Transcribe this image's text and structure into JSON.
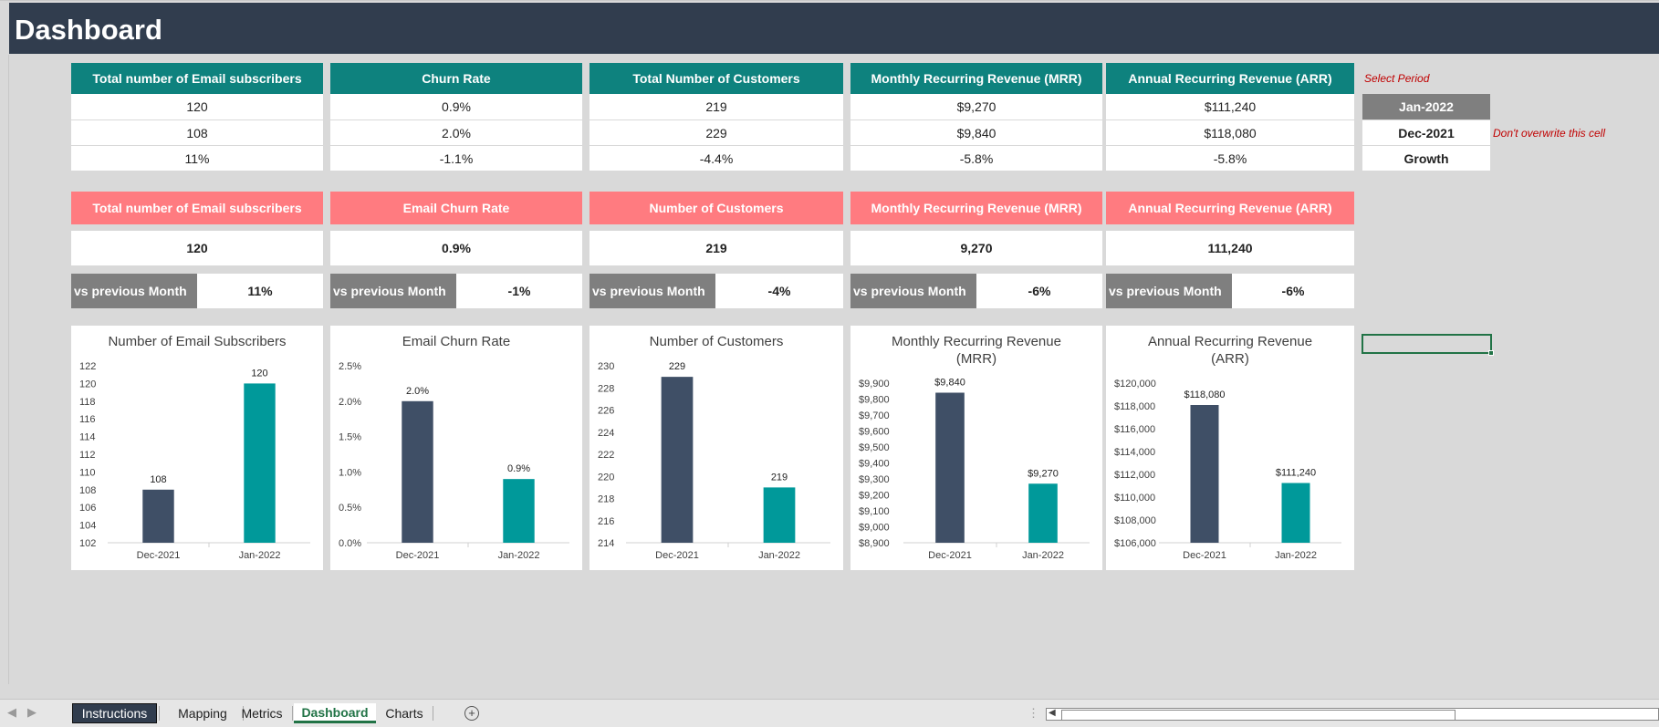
{
  "header": {
    "title": "Dashboard"
  },
  "colors": {
    "header_bg": "#313d4e",
    "teal": "#0e827e",
    "pink": "#ff7b80",
    "grey": "#7f7f7f",
    "bar_dark": "#3f4f66",
    "bar_teal": "#00999a",
    "note_red": "#c00000"
  },
  "summary_table": {
    "columns": [
      {
        "header": "Total number of Email subscribers",
        "values": [
          "120",
          "108",
          "11%"
        ]
      },
      {
        "header": "Churn Rate",
        "values": [
          "0.9%",
          "2.0%",
          "-1.1%"
        ]
      },
      {
        "header": "Total Number of Customers",
        "values": [
          "219",
          "229",
          "-4.4%"
        ]
      },
      {
        "header": "Monthly Recurring Revenue (MRR)",
        "values": [
          "$9,270",
          "$9,840",
          "-5.8%"
        ]
      },
      {
        "header": "Annual Recurring Revenue (ARR)",
        "values": [
          "$111,240",
          "$118,080",
          "-5.8%"
        ]
      }
    ]
  },
  "period_selector": {
    "label": "Select Period",
    "rows": [
      "Jan-2022",
      "Dec-2021",
      "Growth"
    ],
    "warning": "Don't overwrite this cell"
  },
  "kpi_cards": [
    {
      "title": "Total number of Email subscribers",
      "value": "120",
      "vs_label": "vs previous Month",
      "vs_value": "11%"
    },
    {
      "title": "Email Churn Rate",
      "value": "0.9%",
      "vs_label": "vs previous Month",
      "vs_value": "-1%"
    },
    {
      "title": "Number of Customers",
      "value": "219",
      "vs_label": "vs previous Month",
      "vs_value": "-4%"
    },
    {
      "title": "Monthly Recurring Revenue (MRR)",
      "value": "9,270",
      "vs_label": "vs previous Month",
      "vs_value": "-6%"
    },
    {
      "title": "Annual Recurring Revenue (ARR)",
      "value": "111,240",
      "vs_label": "vs previous Month",
      "vs_value": "-6%"
    }
  ],
  "chart_data": [
    {
      "type": "bar",
      "title": [
        "Number of Email Subscribers"
      ],
      "categories": [
        "Dec-2021",
        "Jan-2022"
      ],
      "values": [
        108,
        120
      ],
      "value_labels": [
        "108",
        "120"
      ],
      "ylim": [
        102,
        122
      ],
      "yticks": [
        "102",
        "104",
        "106",
        "108",
        "110",
        "112",
        "114",
        "116",
        "118",
        "120",
        "122"
      ]
    },
    {
      "type": "bar",
      "title": [
        "Email Churn Rate"
      ],
      "categories": [
        "Dec-2021",
        "Jan-2022"
      ],
      "values": [
        2.0,
        0.9
      ],
      "value_labels": [
        "2.0%",
        "0.9%"
      ],
      "ylim": [
        0,
        2.5
      ],
      "yticks": [
        "0.0%",
        "0.5%",
        "1.0%",
        "1.5%",
        "2.0%",
        "2.5%"
      ]
    },
    {
      "type": "bar",
      "title": [
        "Number of Customers"
      ],
      "categories": [
        "Dec-2021",
        "Jan-2022"
      ],
      "values": [
        229,
        219
      ],
      "value_labels": [
        "229",
        "219"
      ],
      "ylim": [
        214,
        230
      ],
      "yticks": [
        "214",
        "216",
        "218",
        "220",
        "222",
        "224",
        "226",
        "228",
        "230"
      ]
    },
    {
      "type": "bar",
      "title": [
        "Monthly Recurring Revenue",
        "(MRR)"
      ],
      "categories": [
        "Dec-2021",
        "Jan-2022"
      ],
      "values": [
        9840,
        9270
      ],
      "value_labels": [
        "$9,840",
        "$9,270"
      ],
      "ylim": [
        8900,
        9900
      ],
      "yticks": [
        "$8,900",
        "$9,000",
        "$9,100",
        "$9,200",
        "$9,300",
        "$9,400",
        "$9,500",
        "$9,600",
        "$9,700",
        "$9,800",
        "$9,900"
      ]
    },
    {
      "type": "bar",
      "title": [
        "Annual Recurring Revenue",
        "(ARR)"
      ],
      "categories": [
        "Dec-2021",
        "Jan-2022"
      ],
      "values": [
        118080,
        111240
      ],
      "value_labels": [
        "$118,080",
        "$111,240"
      ],
      "ylim": [
        106000,
        120000
      ],
      "yticks": [
        "$106,000",
        "$108,000",
        "$110,000",
        "$112,000",
        "$114,000",
        "$116,000",
        "$118,000",
        "$120,000"
      ]
    }
  ],
  "sheet_tabs": [
    "Instructions",
    "Mapping",
    "Metrics",
    "Dashboard",
    "Charts"
  ],
  "active_tab": "Dashboard"
}
